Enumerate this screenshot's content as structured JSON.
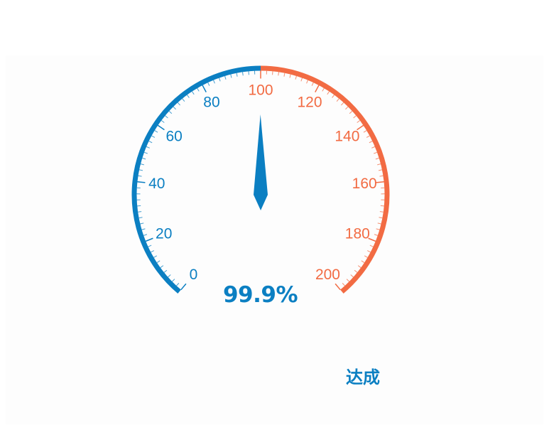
{
  "colors": {
    "primary": "#0b7fc2",
    "accent": "#f26b43",
    "background": "#ffffff"
  },
  "gauge": {
    "value_text": "99.9%",
    "status": "达成"
  },
  "chart_data": {
    "type": "gauge",
    "min": 0,
    "max": 200,
    "value": 99.9,
    "threshold": 100,
    "major_ticks": [
      0,
      20,
      40,
      60,
      80,
      100,
      120,
      140,
      160,
      180,
      200
    ],
    "tick_labels": [
      "0",
      "20",
      "40",
      "60",
      "80",
      "100",
      "120",
      "140",
      "160",
      "180",
      "200"
    ],
    "minor_divisions": 10,
    "bands": [
      {
        "from": 0,
        "to": 100,
        "color": "#0b7fc2"
      },
      {
        "from": 100,
        "to": 200,
        "color": "#f26b43"
      }
    ]
  }
}
